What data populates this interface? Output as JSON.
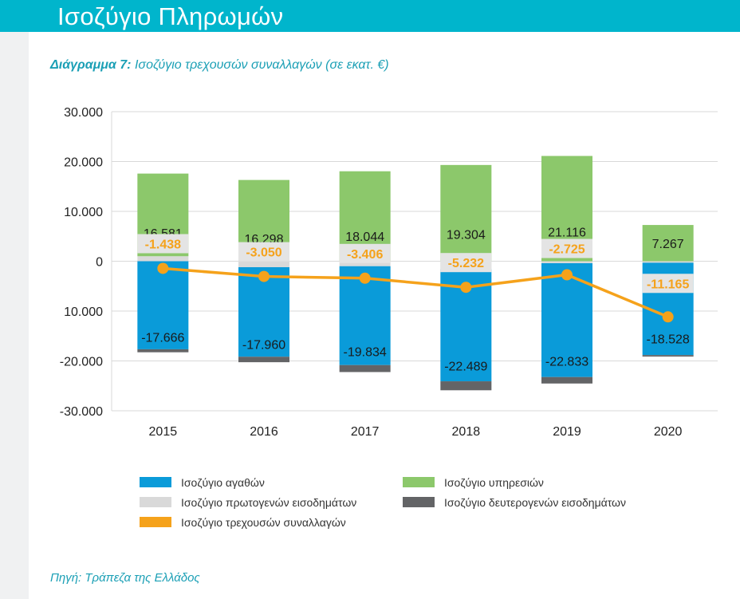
{
  "header": {
    "title": "Ισοζύγιο Πληρωμών"
  },
  "caption": {
    "label": "Διάγραμμα 7:",
    "text": "Ισοζύγιο τρεχουσών συναλλαγών (σε εκατ. €)"
  },
  "source": "Πηγή: Τράπεζα της Ελλάδος",
  "colors": {
    "header": "#00b5cc",
    "goods": "#0a9bd9",
    "services": "#8cc86b",
    "primary_income": "#d9d9d9",
    "secondary_income": "#636466",
    "current_account": "#f5a21b",
    "accent_text": "#1a9fb5"
  },
  "chart_data": {
    "type": "bar",
    "stacked": true,
    "title": "Ισοζύγιο τρεχουσών συναλλαγών (σε εκατ. €)",
    "categories": [
      "2015",
      "2016",
      "2017",
      "2018",
      "2019",
      "2020"
    ],
    "y_ticks": [
      "30.000",
      "20.000",
      "10.000",
      "0",
      "10.000",
      "-20.000",
      "-30.000"
    ],
    "ylim": [
      -30000,
      30000
    ],
    "grid": true,
    "series": [
      {
        "name": "Ισοζύγιο αγαθών",
        "key": "goods",
        "values": [
          -17666,
          -17960,
          -19834,
          -22489,
          -22833,
          -18528
        ],
        "labels": [
          "-17.666",
          "-17.960",
          "-19.834",
          "-22.489",
          "-22.833",
          "-18.528"
        ]
      },
      {
        "name": "Ισοζύγιο υπηρεσιών",
        "key": "services",
        "values": [
          16581,
          16298,
          18044,
          19304,
          21116,
          7267
        ],
        "labels": [
          "16.581",
          "16.298",
          "18.044",
          "19.304",
          "21.116",
          "7.267"
        ]
      },
      {
        "name": "Ισοζύγιο πρωτογενών εισοδημάτων",
        "key": "primary_income",
        "values": [
          1000,
          -1200,
          -1000,
          -1600,
          -400,
          -300
        ]
      },
      {
        "name": "Ισοζύγιο δευτερογενών εισοδημάτων",
        "key": "secondary_income",
        "values": [
          -600,
          -1100,
          -1400,
          -1800,
          -1300,
          -300
        ]
      },
      {
        "name": "Ισοζύγιο τρεχουσών συναλλαγών",
        "key": "current_account",
        "type": "line",
        "values": [
          -1438,
          -3050,
          -3406,
          -5232,
          -2725,
          -11165
        ],
        "labels": [
          "-1.438",
          "-3.050",
          "-3.406",
          "-5.232",
          "-2.725",
          "-11.165"
        ]
      }
    ],
    "legend": [
      {
        "label": "Ισοζύγιο αγαθών",
        "key": "goods"
      },
      {
        "label": "Ισοζύγιο υπηρεσιών",
        "key": "services"
      },
      {
        "label": "Ισοζύγιο  πρωτογενών εισοδημάτων",
        "key": "primary_income"
      },
      {
        "label": "Ισοζύγιο δευτερογενών εισοδημάτων",
        "key": "secondary_income"
      },
      {
        "label": "Ισοζύγιο  τρεχουσών συναλλαγών",
        "key": "current_account"
      }
    ],
    "legend_position": "bottom"
  }
}
